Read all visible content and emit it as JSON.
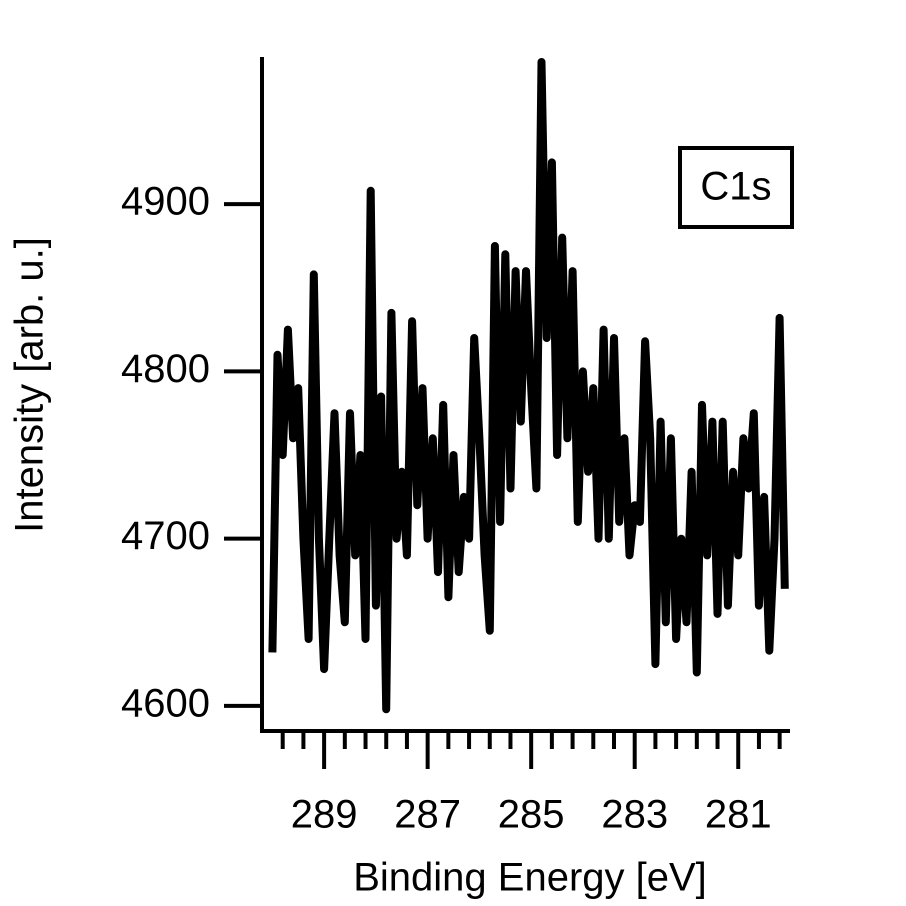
{
  "chart_data": {
    "type": "line",
    "xlabel": "Binding Energy [eV]",
    "ylabel": "Intensity [arb. u.]",
    "annotation": "C1s",
    "x": [
      290.0,
      289.9,
      289.8,
      289.7,
      289.6,
      289.5,
      289.4,
      289.3,
      289.2,
      289.1,
      289.0,
      288.9,
      288.8,
      288.7,
      288.6,
      288.5,
      288.4,
      288.3,
      288.2,
      288.1,
      288.0,
      287.9,
      287.8,
      287.7,
      287.6,
      287.5,
      287.4,
      287.3,
      287.2,
      287.1,
      287.0,
      286.9,
      286.8,
      286.7,
      286.6,
      286.5,
      286.4,
      286.3,
      286.2,
      286.1,
      286.0,
      285.9,
      285.8,
      285.7,
      285.6,
      285.5,
      285.4,
      285.3,
      285.2,
      285.1,
      285.0,
      284.9,
      284.8,
      284.7,
      284.6,
      284.5,
      284.4,
      284.3,
      284.2,
      284.1,
      284.0,
      283.9,
      283.8,
      283.7,
      283.6,
      283.5,
      283.4,
      283.3,
      283.2,
      283.1,
      283.0,
      282.9,
      282.8,
      282.7,
      282.6,
      282.5,
      282.4,
      282.3,
      282.2,
      282.1,
      282.0,
      281.9,
      281.8,
      281.7,
      281.6,
      281.5,
      281.4,
      281.3,
      281.2,
      281.1,
      281.0,
      280.9,
      280.8,
      280.7,
      280.6,
      280.5,
      280.4,
      280.3,
      280.2,
      280.1
    ],
    "series": [
      {
        "color": "#000000",
        "values": [
          4632,
          4810,
          4750,
          4825,
          4760,
          4790,
          4700,
          4640,
          4858,
          4700,
          4622,
          4700,
          4775,
          4690,
          4650,
          4775,
          4690,
          4750,
          4640,
          4908,
          4660,
          4785,
          4598,
          4835,
          4700,
          4740,
          4690,
          4830,
          4720,
          4790,
          4700,
          4760,
          4680,
          4780,
          4665,
          4750,
          4680,
          4725,
          4700,
          4820,
          4760,
          4690,
          4645,
          4875,
          4710,
          4870,
          4730,
          4860,
          4770,
          4860,
          4790,
          4730,
          4985,
          4820,
          4925,
          4750,
          4880,
          4760,
          4860,
          4710,
          4800,
          4740,
          4790,
          4700,
          4825,
          4700,
          4820,
          4710,
          4760,
          4690,
          4720,
          4710,
          4818,
          4760,
          4625,
          4770,
          4650,
          4760,
          4640,
          4700,
          4650,
          4740,
          4620,
          4780,
          4690,
          4770,
          4655,
          4770,
          4660,
          4740,
          4690,
          4760,
          4730,
          4775,
          4660,
          4725,
          4633,
          4700,
          4832,
          4670
        ]
      }
    ],
    "xlim": [
      290.2,
      280.0
    ],
    "xticks": [
      289,
      287,
      285,
      283,
      281
    ],
    "xminorticks": [
      289.8,
      289.4,
      288.6,
      288.2,
      287.8,
      287.4,
      286.6,
      286.2,
      285.8,
      285.4,
      284.6,
      284.2,
      283.8,
      283.4,
      282.6,
      282.2,
      281.8,
      281.4,
      280.6,
      280.2
    ],
    "ylim": [
      4585,
      4988
    ],
    "yticks": [
      4600,
      4700,
      4800,
      4900
    ]
  }
}
